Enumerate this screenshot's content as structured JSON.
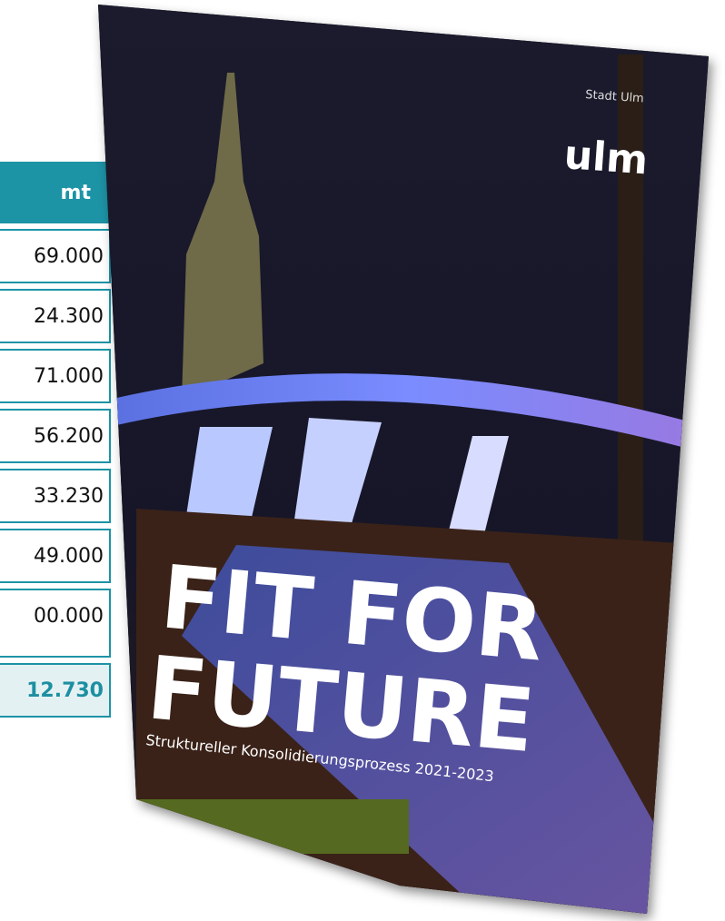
{
  "table": {
    "header": "mt",
    "rows": [
      "69.000",
      "24.300",
      "71.000",
      "56.200",
      "33.230",
      "49.000",
      "00.000"
    ],
    "total": "12.730"
  },
  "cover": {
    "publisher": "Stadt Ulm",
    "logo": "ulm",
    "title_line1": "FIT FOR",
    "title_line2": "FUTURE",
    "subtitle": "Struktureller Konsolidierungsprozess 2021-2023"
  }
}
